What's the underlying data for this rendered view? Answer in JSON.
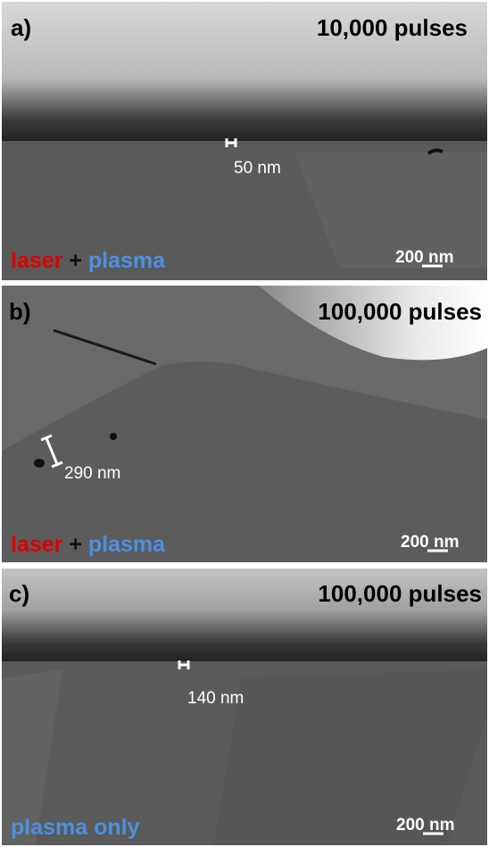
{
  "panels": [
    {
      "label": "a)",
      "pulses": "10,000 pulses",
      "condition": [
        {
          "text": "laser",
          "color": "#e00000"
        },
        {
          "text": "+",
          "color": "#111111"
        },
        {
          "text": "plasma",
          "color": "#4a90e2"
        }
      ],
      "measurement": "50 nm",
      "scale_bar": "200 nm"
    },
    {
      "label": "b)",
      "pulses": "100,000 pulses",
      "condition": [
        {
          "text": "laser",
          "color": "#e00000"
        },
        {
          "text": "+",
          "color": "#111111"
        },
        {
          "text": "plasma",
          "color": "#4a90e2"
        }
      ],
      "measurement": "290 nm",
      "scale_bar": "200 nm"
    },
    {
      "label": "c)",
      "pulses": "100,000 pulses",
      "condition": [
        {
          "text": "plasma only",
          "color": "#4a90e2"
        }
      ],
      "measurement": "140 nm",
      "scale_bar": "200 nm"
    }
  ]
}
